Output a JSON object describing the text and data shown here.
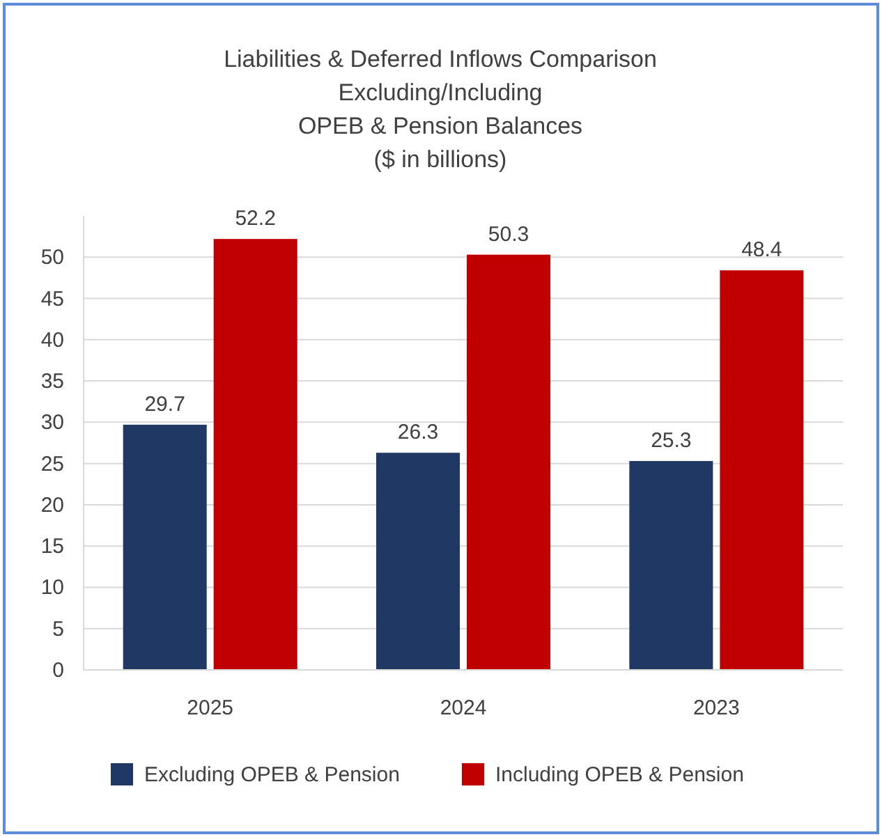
{
  "chart_data": {
    "type": "bar",
    "title": "Liabilities & Deferred Inflows Comparison\nExcluding/Including\nOPEB & Pension Balances\n($ in billions)",
    "categories": [
      "2025",
      "2024",
      "2023"
    ],
    "series": [
      {
        "name": "Excluding OPEB & Pension",
        "color": "#1f3864",
        "values": [
          29.7,
          26.3,
          25.3
        ]
      },
      {
        "name": "Including OPEB & Pension",
        "color": "#c00000",
        "values": [
          52.2,
          50.3,
          48.4
        ]
      }
    ],
    "ylim": [
      0,
      55
    ],
    "yticks": [
      0,
      5,
      10,
      15,
      20,
      25,
      30,
      35,
      40,
      45,
      50
    ],
    "grid": "y",
    "legend": "bottom",
    "data_labels": true
  }
}
